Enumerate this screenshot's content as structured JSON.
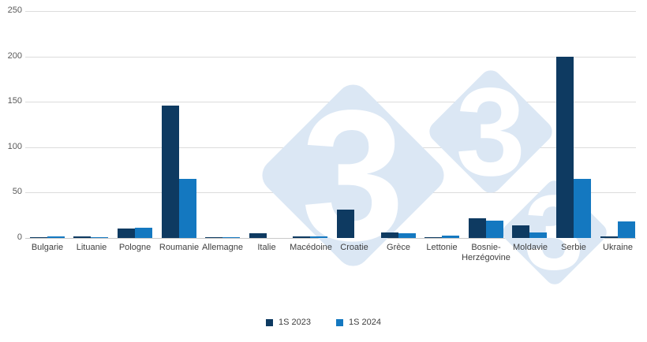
{
  "chart_data": {
    "type": "bar",
    "title": "",
    "categories": [
      "Bulgarie",
      "Lituanie",
      "Pologne",
      "Roumanie",
      "Allemagne",
      "Italie",
      "Macédoine",
      "Croatie",
      "Grèce",
      "Lettonie",
      "Bosnie-\nHerzégovine",
      "Moldavie",
      "Serbie",
      "Ukraine"
    ],
    "series": [
      {
        "name": "1S 2023",
        "color": "#0e3a61",
        "values": [
          0.5,
          2,
          10,
          146,
          1,
          5,
          2,
          31,
          6,
          1,
          22,
          14,
          200,
          2
        ]
      },
      {
        "name": "1S 2024",
        "color": "#1478c0",
        "values": [
          2,
          1,
          11,
          65,
          1,
          0,
          2,
          0,
          5,
          3,
          19,
          6,
          65,
          18
        ]
      }
    ],
    "xlabel": "",
    "ylabel": "",
    "ylim": [
      0,
      250
    ],
    "yticks": [
      0,
      50,
      100,
      150,
      200,
      250
    ],
    "grid": true,
    "legend_position": "bottom"
  },
  "watermark": {
    "text": "3",
    "diamond_color": "#dbe7f4",
    "text_color": "#ffffff"
  },
  "colors": {
    "background": "#ffffff",
    "gridline": "#dcdcdc",
    "axis_line": "#c9c9c9",
    "tick_label": "#595959",
    "category_label": "#3f3f3f"
  }
}
